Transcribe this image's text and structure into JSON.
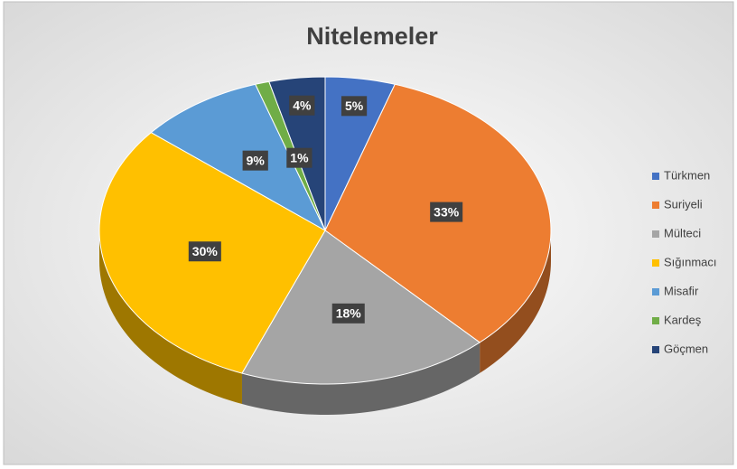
{
  "chart_data": {
    "type": "pie3d",
    "title": "Nitelemeler",
    "categories": [
      "Türkmen",
      "Suriyeli",
      "Mülteci",
      "Sığınmacı",
      "Misafir",
      "Kardeş",
      "Göçmen"
    ],
    "values": [
      5,
      33,
      18,
      30,
      9,
      1,
      4
    ],
    "value_labels": [
      "5%",
      "33%",
      "18%",
      "30%",
      "9%",
      "1%",
      "4%"
    ],
    "colors": [
      "#4472c4",
      "#ed7d31",
      "#a5a5a5",
      "#ffc000",
      "#5b9bd5",
      "#70ad47",
      "#264478"
    ],
    "legend": "right"
  }
}
